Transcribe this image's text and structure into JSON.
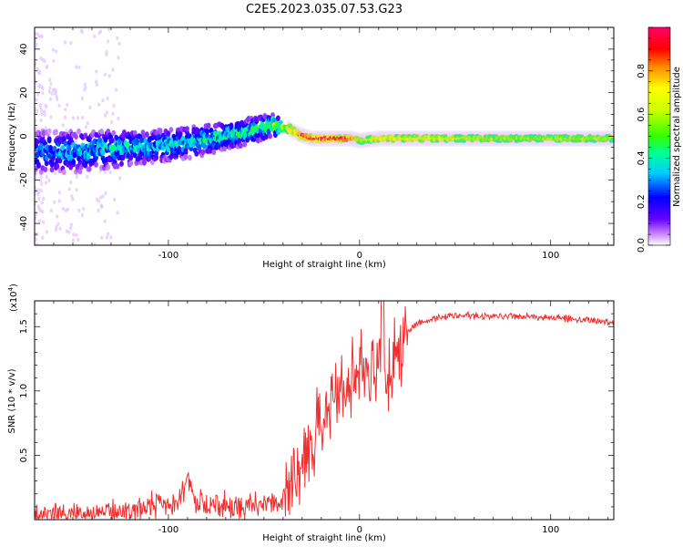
{
  "figure": {
    "title": "C2E5.2023.035.07.53.G23"
  },
  "chart_data": [
    {
      "type": "heatmap",
      "xlabel": "Height of straight line (km)",
      "ylabel": "Frequency (Hz)",
      "xlim": [
        -170,
        133
      ],
      "ylim": [
        -50,
        50
      ],
      "x_ticks": [
        -100,
        0,
        100
      ],
      "y_ticks": [
        -40,
        -20,
        0,
        20,
        40
      ],
      "colorbar": {
        "label": "Normalized spectral amplitude",
        "range": [
          0,
          1
        ],
        "ticks": [
          "0.0",
          "0.2",
          "0.4",
          "0.6",
          "0.8"
        ],
        "colors": [
          "#ffffff",
          "#cc88ff",
          "#6600ff",
          "#0000ff",
          "#00ccff",
          "#00ff66",
          "#66ff00",
          "#ffff00",
          "#ff6600",
          "#ff0000",
          "#ff0066"
        ]
      },
      "ridge": {
        "x": [
          -170,
          -150,
          -130,
          -110,
          -90,
          -70,
          -55,
          -45,
          -38,
          -32,
          -25,
          -15,
          -5,
          0,
          10,
          30,
          60,
          90,
          120,
          133
        ],
        "freq": [
          -7,
          -7,
          -6,
          -5,
          -3,
          0,
          3,
          5,
          4,
          1,
          -1,
          -1,
          -1,
          -2,
          -1,
          -1,
          -1,
          -1,
          -1,
          -1
        ],
        "spread": [
          8,
          8,
          7,
          6,
          6,
          5,
          5,
          4,
          2,
          1.5,
          1.2,
          1,
          1,
          1,
          1,
          1,
          1,
          1,
          1,
          1
        ],
        "amplitude": [
          0.3,
          0.35,
          0.4,
          0.4,
          0.4,
          0.45,
          0.45,
          0.6,
          0.7,
          0.8,
          0.9,
          0.9,
          0.9,
          0.6,
          0.7,
          0.7,
          0.6,
          0.6,
          0.6,
          0.6
        ]
      }
    },
    {
      "type": "line",
      "xlabel": "Height of straight line (km)",
      "ylabel": "SNR (10 * v/v)",
      "y_scale_label": "(x10",
      "y_scale_exponent": "4",
      "y_scale_suffix": ")",
      "xlim": [
        -170,
        133
      ],
      "ylim": [
        0,
        1.7
      ],
      "x_ticks": [
        -100,
        0,
        100
      ],
      "y_ticks": [
        "0.5",
        "1.0",
        "1.5"
      ],
      "color": "#f03030",
      "series": [
        {
          "x": [
            -170,
            -150,
            -130,
            -110,
            -95,
            -90,
            -85,
            -75,
            -60,
            -50,
            -40,
            -35,
            -30,
            -25,
            -20,
            -15,
            -10,
            -5,
            0,
            5,
            10,
            12,
            14,
            18,
            25,
            30,
            35,
            45,
            60,
            80,
            100,
            120,
            133
          ],
          "y": [
            0.02,
            0.04,
            0.06,
            0.1,
            0.15,
            0.3,
            0.12,
            0.12,
            0.1,
            0.12,
            0.15,
            0.3,
            0.45,
            0.6,
            0.75,
            0.9,
            1.0,
            1.05,
            1.15,
            1.2,
            1.25,
            1.4,
            1.0,
            1.3,
            1.45,
            1.52,
            1.55,
            1.58,
            1.58,
            1.58,
            1.57,
            1.55,
            1.53
          ]
        }
      ]
    }
  ]
}
